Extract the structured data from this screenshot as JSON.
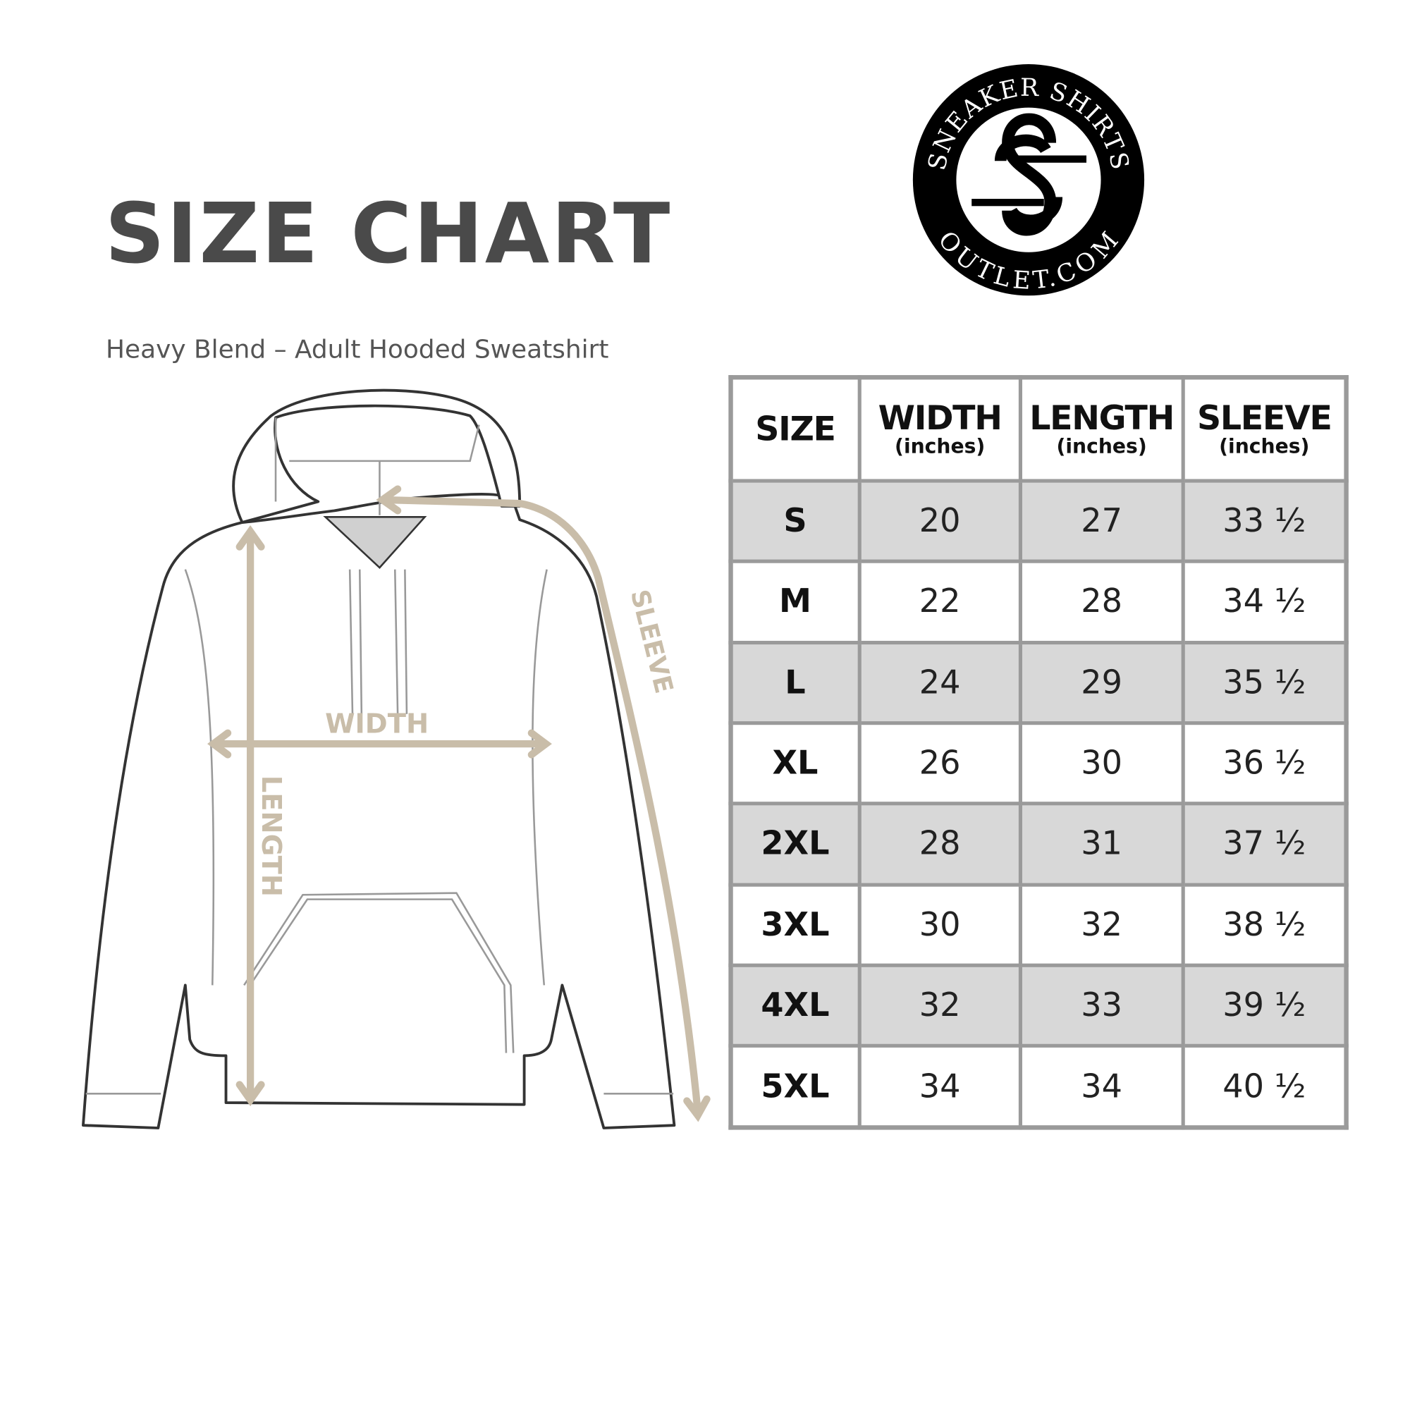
{
  "header": {
    "title": "SIZE CHART",
    "subtitle": "Heavy Blend – Adult Hooded Sweatshirt"
  },
  "logo": {
    "top_text": "SNEAKER SHIRTS",
    "bottom_text": "OUTLET.COM",
    "monogram": "SS"
  },
  "diagram": {
    "width_label": "WIDTH",
    "length_label": "LENGTH",
    "sleeve_label": "SLEEVE",
    "arrow_color": "#c9bda9"
  },
  "table": {
    "columns": [
      {
        "label": "SIZE",
        "unit": ""
      },
      {
        "label": "WIDTH",
        "unit": "(inches)"
      },
      {
        "label": "LENGTH",
        "unit": "(inches)"
      },
      {
        "label": "SLEEVE",
        "unit": "(inches)"
      }
    ],
    "rows": [
      [
        "S",
        "20",
        "27",
        "33 ½"
      ],
      [
        "M",
        "22",
        "28",
        "34 ½"
      ],
      [
        "L",
        "24",
        "29",
        "35 ½"
      ],
      [
        "XL",
        "26",
        "30",
        "36 ½"
      ],
      [
        "2XL",
        "28",
        "31",
        "37 ½"
      ],
      [
        "3XL",
        "30",
        "32",
        "38 ½"
      ],
      [
        "4XL",
        "32",
        "33",
        "39 ½"
      ],
      [
        "5XL",
        "34",
        "34",
        "40 ½"
      ]
    ],
    "shade_color": "#d8d8d8",
    "border_color": "#9a9a9a"
  }
}
